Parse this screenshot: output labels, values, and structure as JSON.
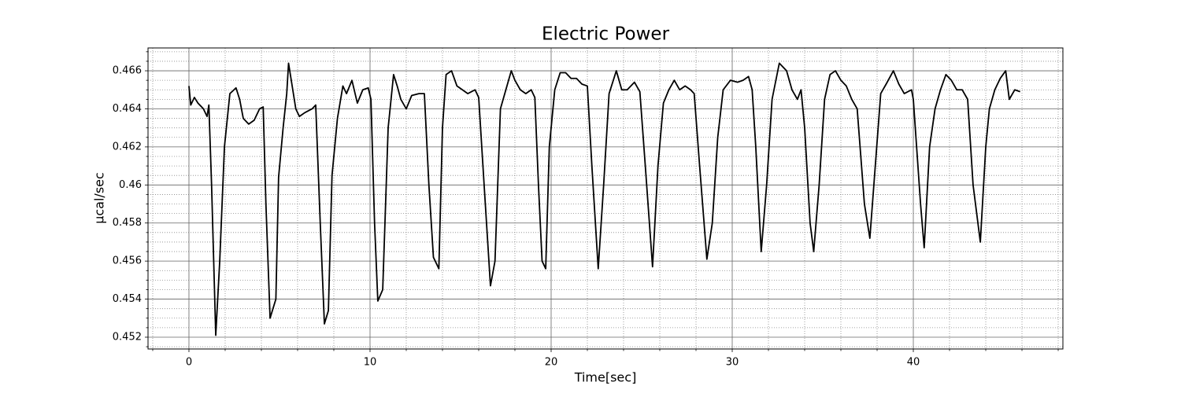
{
  "chart_data": {
    "type": "line",
    "title": "Electric Power",
    "xlabel": "Time[sec]",
    "ylabel": "µcal/sec",
    "x": [
      0,
      0.1,
      0.3,
      0.5,
      0.8,
      1.0,
      1.1,
      1.25,
      1.48,
      1.7,
      1.96,
      2.26,
      2.6,
      2.8,
      3.0,
      3.3,
      3.6,
      3.9,
      4.1,
      4.25,
      4.48,
      4.8,
      4.95,
      5.2,
      5.4,
      5.5,
      5.7,
      5.9,
      6.1,
      6.4,
      6.8,
      7.0,
      7.25,
      7.48,
      7.7,
      7.9,
      8.2,
      8.5,
      8.7,
      9.0,
      9.3,
      9.6,
      9.9,
      10.05,
      10.25,
      10.43,
      10.7,
      11.0,
      11.3,
      11.5,
      11.7,
      12.0,
      12.3,
      12.7,
      13.0,
      13.25,
      13.5,
      13.8,
      14.0,
      14.2,
      14.5,
      14.8,
      15.1,
      15.4,
      15.8,
      16.0,
      16.3,
      16.65,
      16.9,
      17.2,
      17.5,
      17.8,
      18.0,
      18.3,
      18.6,
      18.9,
      19.1,
      19.3,
      19.5,
      19.7,
      19.9,
      20.2,
      20.5,
      20.8,
      21.1,
      21.4,
      21.7,
      22.0,
      22.25,
      22.6,
      22.9,
      23.2,
      23.6,
      23.9,
      24.2,
      24.6,
      24.9,
      25.2,
      25.6,
      25.9,
      26.2,
      26.5,
      26.8,
      27.1,
      27.4,
      27.7,
      27.9,
      28.2,
      28.6,
      28.9,
      29.2,
      29.5,
      29.9,
      30.3,
      30.6,
      30.9,
      31.1,
      31.3,
      31.6,
      31.9,
      32.2,
      32.6,
      33.0,
      33.3,
      33.6,
      33.8,
      34.0,
      34.3,
      34.5,
      34.8,
      35.1,
      35.4,
      35.7,
      36.0,
      36.3,
      36.6,
      36.9,
      37.3,
      37.6,
      37.9,
      38.2,
      38.5,
      38.9,
      39.2,
      39.5,
      39.9,
      40.0,
      40.4,
      40.6,
      40.9,
      41.2,
      41.5,
      41.8,
      42.1,
      42.4,
      42.7,
      43.0,
      43.3,
      43.5,
      43.7,
      44.0,
      44.2,
      44.5,
      44.8,
      45.1,
      45.3,
      45.6,
      45.9
    ],
    "series": [
      {
        "color": "#000000",
        "values": [
          0.4652,
          0.4642,
          0.4646,
          0.4643,
          0.464,
          0.4636,
          0.4642,
          0.46,
          0.4521,
          0.456,
          0.462,
          0.4648,
          0.4651,
          0.4645,
          0.4635,
          0.4632,
          0.4634,
          0.464,
          0.4641,
          0.459,
          0.453,
          0.454,
          0.4604,
          0.463,
          0.4648,
          0.4664,
          0.4652,
          0.464,
          0.4636,
          0.4638,
          0.464,
          0.4642,
          0.458,
          0.4527,
          0.4534,
          0.4605,
          0.4635,
          0.4652,
          0.4648,
          0.4655,
          0.4643,
          0.465,
          0.4651,
          0.4645,
          0.458,
          0.4539,
          0.4545,
          0.463,
          0.4658,
          0.4652,
          0.4645,
          0.464,
          0.4647,
          0.4648,
          0.4648,
          0.46,
          0.4562,
          0.4556,
          0.463,
          0.4658,
          0.466,
          0.4652,
          0.465,
          0.4648,
          0.465,
          0.4646,
          0.46,
          0.4547,
          0.456,
          0.464,
          0.465,
          0.466,
          0.4655,
          0.465,
          0.4648,
          0.465,
          0.4646,
          0.46,
          0.456,
          0.4556,
          0.462,
          0.465,
          0.4659,
          0.4659,
          0.4656,
          0.4656,
          0.4653,
          0.4652,
          0.461,
          0.4556,
          0.46,
          0.4648,
          0.466,
          0.465,
          0.465,
          0.4654,
          0.4649,
          0.461,
          0.4557,
          0.461,
          0.4643,
          0.465,
          0.4655,
          0.465,
          0.4652,
          0.465,
          0.4648,
          0.461,
          0.4561,
          0.458,
          0.4625,
          0.465,
          0.4655,
          0.4654,
          0.4655,
          0.4657,
          0.465,
          0.462,
          0.4565,
          0.46,
          0.4645,
          0.4664,
          0.466,
          0.465,
          0.4645,
          0.465,
          0.463,
          0.458,
          0.4565,
          0.46,
          0.4645,
          0.4658,
          0.466,
          0.4655,
          0.4652,
          0.4645,
          0.464,
          0.459,
          0.4572,
          0.461,
          0.4648,
          0.4653,
          0.466,
          0.4653,
          0.4648,
          0.465,
          0.4645,
          0.459,
          0.4567,
          0.462,
          0.464,
          0.465,
          0.4658,
          0.4655,
          0.465,
          0.465,
          0.4645,
          0.46,
          0.4585,
          0.457,
          0.462,
          0.464,
          0.465,
          0.4656,
          0.466,
          0.4645,
          0.465,
          0.4649
        ]
      }
    ],
    "xlim": [
      -2.26,
      48.26
    ],
    "ylim": [
      0.45138,
      0.4672
    ],
    "xticks": [
      0,
      10,
      20,
      30,
      40
    ],
    "yticks": [
      0.452,
      0.454,
      0.456,
      0.458,
      0.46,
      0.462,
      0.464,
      0.466
    ],
    "xminorticks": [
      -2,
      2,
      4,
      6,
      8,
      12,
      14,
      16,
      18,
      22,
      24,
      26,
      28,
      32,
      34,
      36,
      38,
      42,
      44,
      46,
      48
    ],
    "yminorticks": [
      0.4515,
      0.4525,
      0.453,
      0.4535,
      0.4545,
      0.455,
      0.4555,
      0.4565,
      0.457,
      0.4575,
      0.4585,
      0.459,
      0.4595,
      0.4605,
      0.461,
      0.4615,
      0.4625,
      0.463,
      0.4635,
      0.4645,
      0.465,
      0.4655,
      0.4665,
      0.467
    ],
    "grid": true
  }
}
